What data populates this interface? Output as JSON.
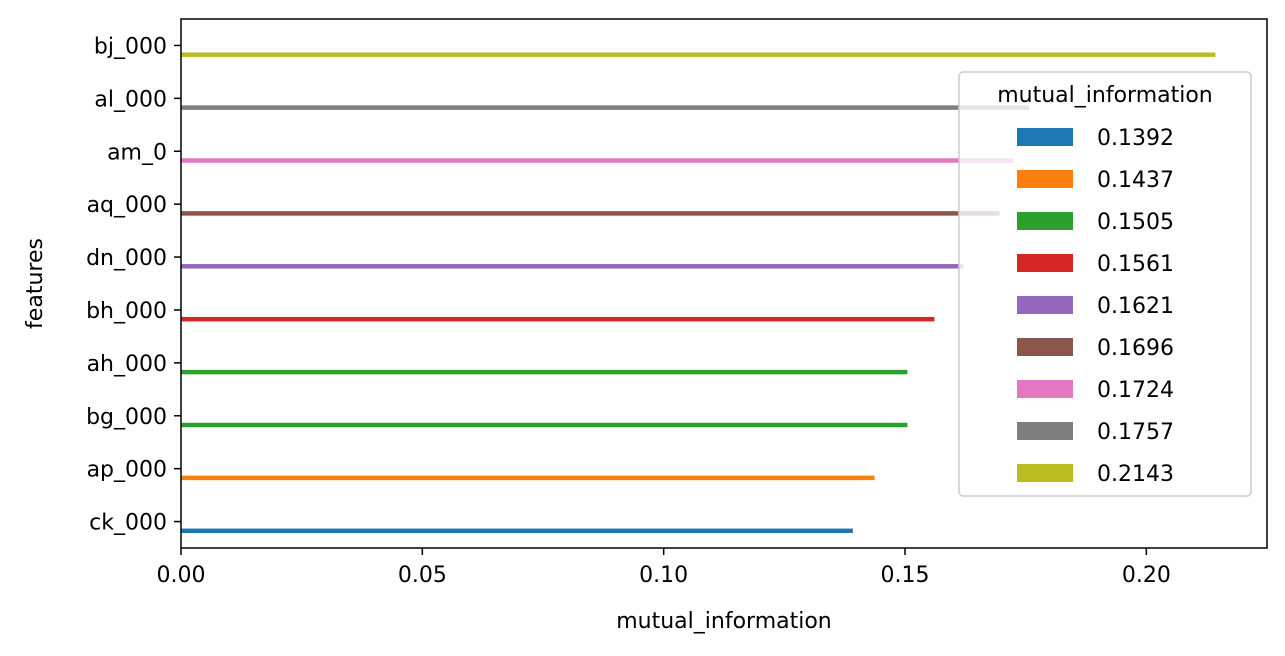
{
  "chart_data": {
    "type": "bar",
    "orientation": "horizontal",
    "title": "",
    "xlabel": "mutual_information",
    "ylabel": "features",
    "xlim": [
      0,
      0.225
    ],
    "xticks": [
      0.0,
      0.05,
      0.1,
      0.15,
      0.2
    ],
    "xtick_labels": [
      "0.00",
      "0.05",
      "0.10",
      "0.15",
      "0.20"
    ],
    "grid": false,
    "categories": [
      "bj_000",
      "al_000",
      "am_0",
      "aq_000",
      "dn_000",
      "bh_000",
      "ah_000",
      "bg_000",
      "ap_000",
      "ck_000"
    ],
    "values": [
      0.2143,
      0.1757,
      0.1724,
      0.1696,
      0.1621,
      0.1561,
      0.1505,
      0.1505,
      0.1437,
      0.1392
    ],
    "bar_colors": [
      "#bcbd22",
      "#7f7f7f",
      "#e377c2",
      "#8c564b",
      "#9467bd",
      "#d62728",
      "#2ca02c",
      "#2ca02c",
      "#ff7f0e",
      "#1f77b4"
    ],
    "legend": {
      "title": "mutual_information",
      "placement": "upper-right",
      "entries": [
        {
          "label": "0.1392",
          "color": "#1f77b4"
        },
        {
          "label": "0.1437",
          "color": "#ff7f0e"
        },
        {
          "label": "0.1505",
          "color": "#2ca02c"
        },
        {
          "label": "0.1561",
          "color": "#d62728"
        },
        {
          "label": "0.1621",
          "color": "#9467bd"
        },
        {
          "label": "0.1696",
          "color": "#8c564b"
        },
        {
          "label": "0.1724",
          "color": "#e377c2"
        },
        {
          "label": "0.1757",
          "color": "#7f7f7f"
        },
        {
          "label": "0.2143",
          "color": "#bcbd22"
        }
      ]
    }
  }
}
